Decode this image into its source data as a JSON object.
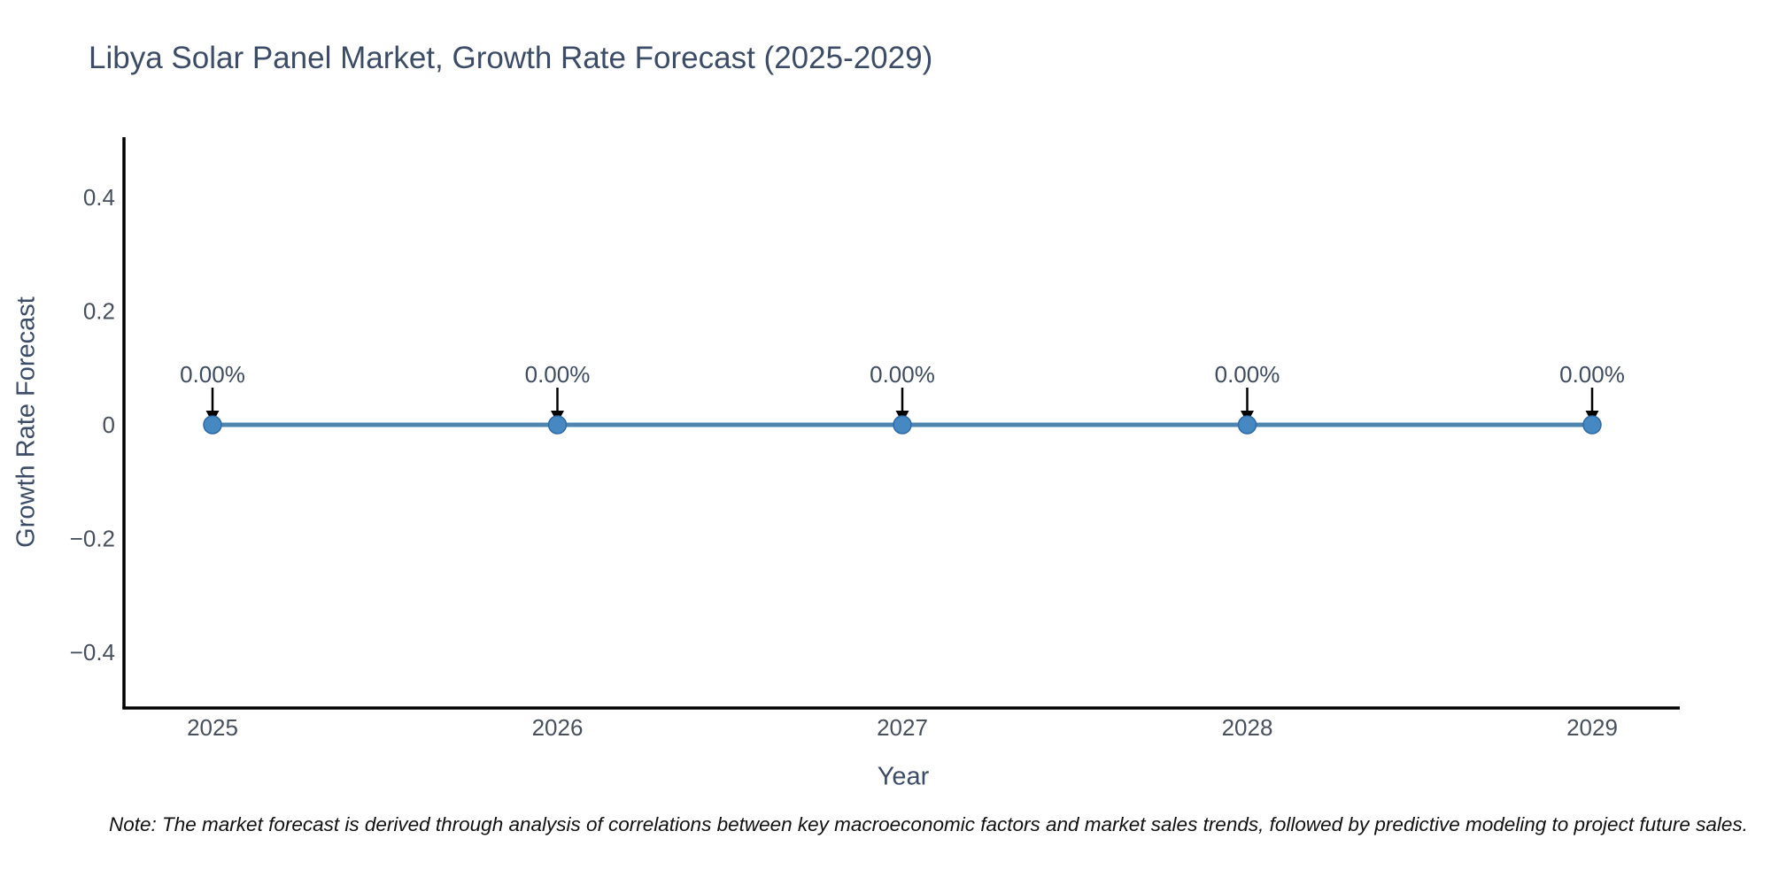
{
  "title": "Libya Solar Panel Market, Growth Rate Forecast (2025-2029)",
  "note": "Note: The market forecast is derived through analysis of correlations between key macroeconomic factors and market sales trends, followed by predictive modeling to project future sales.",
  "chart_data": {
    "type": "line",
    "title": "Libya Solar Panel Market, Growth Rate Forecast (2025-2029)",
    "xlabel": "Year",
    "ylabel": "Growth Rate Forecast",
    "x": [
      2025,
      2026,
      2027,
      2028,
      2029
    ],
    "y": [
      0,
      0,
      0,
      0,
      0
    ],
    "point_labels": [
      "0.00%",
      "0.00%",
      "0.00%",
      "0.00%",
      "0.00%"
    ],
    "yticks": [
      0.4,
      0.2,
      0,
      -0.2,
      -0.4
    ],
    "ytick_labels": [
      "0.4",
      "0.2",
      "0",
      "−0.2",
      "−0.4"
    ],
    "ylim": [
      -0.5,
      0.5
    ],
    "grid": false,
    "legend": "none",
    "annotation_style": "down-arrow",
    "colors": {
      "line": "#4e84b0",
      "marker": "#4588c2",
      "marker_edge": "#2f6ba8",
      "axis": "#000000",
      "tick_text": "#47505c",
      "title_text": "#3d4c66",
      "annotation_text": "#3f4c5e",
      "arrow": "#000000",
      "note_text": "#111111",
      "background": "#ffffff"
    }
  }
}
